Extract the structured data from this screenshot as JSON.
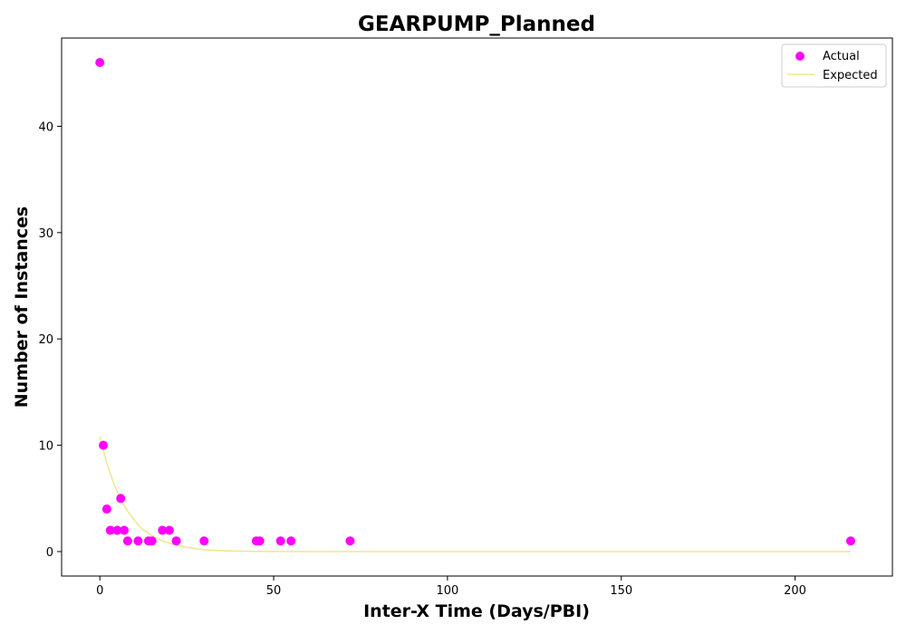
{
  "chart_data": {
    "type": "scatter",
    "title": "GEARPUMP_Planned",
    "xlabel": "Inter-X Time (Days/PBI)",
    "ylabel": "Number of Instances",
    "xlim": [
      -11,
      228
    ],
    "ylim": [
      -2.3,
      48.3
    ],
    "xticks": [
      0,
      50,
      100,
      150,
      200
    ],
    "yticks": [
      0,
      10,
      20,
      30,
      40
    ],
    "grid": false,
    "legend_position": "top-right",
    "series": [
      {
        "name": "Actual",
        "kind": "scatter",
        "color": "#ff00ff",
        "points": [
          {
            "x": 0,
            "y": 46
          },
          {
            "x": 1,
            "y": 10
          },
          {
            "x": 2,
            "y": 4
          },
          {
            "x": 3,
            "y": 2
          },
          {
            "x": 5,
            "y": 2
          },
          {
            "x": 6,
            "y": 5
          },
          {
            "x": 7,
            "y": 2
          },
          {
            "x": 8,
            "y": 1
          },
          {
            "x": 11,
            "y": 1
          },
          {
            "x": 14,
            "y": 1
          },
          {
            "x": 15,
            "y": 1
          },
          {
            "x": 18,
            "y": 2
          },
          {
            "x": 20,
            "y": 2
          },
          {
            "x": 22,
            "y": 1
          },
          {
            "x": 30,
            "y": 1
          },
          {
            "x": 45,
            "y": 1
          },
          {
            "x": 46,
            "y": 1
          },
          {
            "x": 52,
            "y": 1
          },
          {
            "x": 55,
            "y": 1
          },
          {
            "x": 72,
            "y": 1
          },
          {
            "x": 216,
            "y": 1
          }
        ]
      },
      {
        "name": "Expected",
        "kind": "line",
        "color": "#f0e68c",
        "points": [
          {
            "x": 0,
            "y": 10.8
          },
          {
            "x": 2,
            "y": 8.3
          },
          {
            "x": 4,
            "y": 6.4
          },
          {
            "x": 6,
            "y": 4.9
          },
          {
            "x": 8,
            "y": 3.8
          },
          {
            "x": 10,
            "y": 2.9
          },
          {
            "x": 12,
            "y": 2.2
          },
          {
            "x": 14,
            "y": 1.7
          },
          {
            "x": 16,
            "y": 1.3
          },
          {
            "x": 18,
            "y": 1.0
          },
          {
            "x": 20,
            "y": 0.8
          },
          {
            "x": 22,
            "y": 0.6
          },
          {
            "x": 25,
            "y": 0.4
          },
          {
            "x": 28,
            "y": 0.25
          },
          {
            "x": 32,
            "y": 0.13
          },
          {
            "x": 36,
            "y": 0.08
          },
          {
            "x": 40,
            "y": 0.04
          },
          {
            "x": 45,
            "y": 0.02
          },
          {
            "x": 50,
            "y": 0.01
          },
          {
            "x": 60,
            "y": 0
          },
          {
            "x": 80,
            "y": 0
          },
          {
            "x": 100,
            "y": 0
          },
          {
            "x": 150,
            "y": 0
          },
          {
            "x": 200,
            "y": 0
          },
          {
            "x": 216,
            "y": 0
          }
        ]
      }
    ]
  }
}
